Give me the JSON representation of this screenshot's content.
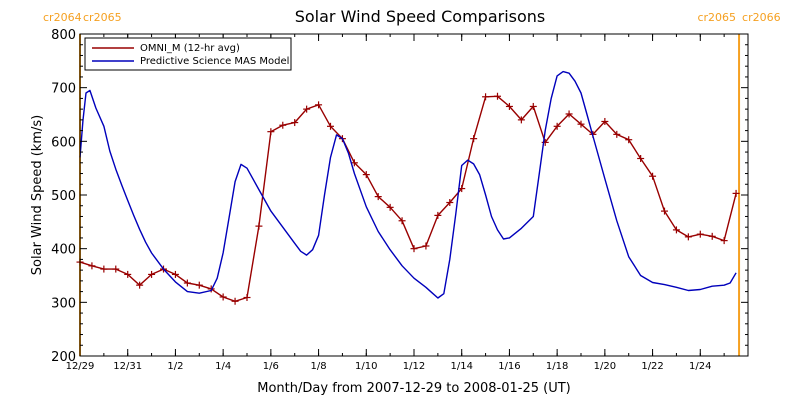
{
  "chart_data": {
    "type": "line",
    "title": "Solar Wind Speed Comparisons",
    "xlabel": "Month/Day from 2007-12-29 to 2008-01-25 (UT)",
    "ylabel": "Solar Wind Speed (km/s)",
    "ylim": [
      200,
      800
    ],
    "xlim": [
      "2007-12-29",
      "2008-01-26"
    ],
    "grid": false,
    "legend_position": "top-left",
    "y_ticks": [
      "200",
      "300",
      "400",
      "500",
      "600",
      "700",
      "800"
    ],
    "x_ticks": [
      {
        "date": "2007-12-29",
        "label": "12/29"
      },
      {
        "date": "2007-12-31",
        "label": "12/31"
      },
      {
        "date": "2008-01-02",
        "label": "1/2"
      },
      {
        "date": "2008-01-04",
        "label": "1/4"
      },
      {
        "date": "2008-01-06",
        "label": "1/6"
      },
      {
        "date": "2008-01-08",
        "label": "1/8"
      },
      {
        "date": "2008-01-10",
        "label": "1/10"
      },
      {
        "date": "2008-01-12",
        "label": "1/12"
      },
      {
        "date": "2008-01-14",
        "label": "1/14"
      },
      {
        "date": "2008-01-16",
        "label": "1/16"
      },
      {
        "date": "2008-01-18",
        "label": "1/18"
      },
      {
        "date": "2008-01-20",
        "label": "1/20"
      },
      {
        "date": "2008-01-22",
        "label": "1/22"
      },
      {
        "date": "2008-01-24",
        "label": "1/24"
      }
    ],
    "carrington_markers": [
      {
        "date": "2007-12-29",
        "left_label": "cr2064",
        "right_label": "cr2065",
        "side": "left"
      },
      {
        "date": "2008-01-25 15:00",
        "left_label": "cr2065",
        "right_label": "cr2066",
        "side": "right"
      }
    ],
    "series": [
      {
        "name": "OMNI_M (12-hr avg)",
        "color": "#990000",
        "marker": "plus",
        "points": [
          [
            "2007-12-29 00:00",
            375
          ],
          [
            "2007-12-29 12:00",
            368
          ],
          [
            "2007-12-30 00:00",
            362
          ],
          [
            "2007-12-30 12:00",
            362
          ],
          [
            "2007-12-31 00:00",
            352
          ],
          [
            "2007-12-31 12:00",
            332
          ],
          [
            "2008-01-01 00:00",
            352
          ],
          [
            "2008-01-01 12:00",
            362
          ],
          [
            "2008-01-02 00:00",
            352
          ],
          [
            "2008-01-02 12:00",
            336
          ],
          [
            "2008-01-03 00:00",
            332
          ],
          [
            "2008-01-03 12:00",
            325
          ],
          [
            "2008-01-04 00:00",
            310
          ],
          [
            "2008-01-04 12:00",
            302
          ],
          [
            "2008-01-05 00:00",
            309
          ],
          [
            "2008-01-05 12:00",
            442
          ],
          [
            "2008-01-06 00:00",
            618
          ],
          [
            "2008-01-06 12:00",
            630
          ],
          [
            "2008-01-07 00:00",
            635
          ],
          [
            "2008-01-07 12:00",
            660
          ],
          [
            "2008-01-08 00:00",
            668
          ],
          [
            "2008-01-08 12:00",
            628
          ],
          [
            "2008-01-09 00:00",
            605
          ],
          [
            "2008-01-09 12:00",
            560
          ],
          [
            "2008-01-10 00:00",
            538
          ],
          [
            "2008-01-10 12:00",
            497
          ],
          [
            "2008-01-11 00:00",
            477
          ],
          [
            "2008-01-11 12:00",
            452
          ],
          [
            "2008-01-12 00:00",
            400
          ],
          [
            "2008-01-12 12:00",
            405
          ],
          [
            "2008-01-13 00:00",
            462
          ],
          [
            "2008-01-13 12:00",
            486
          ],
          [
            "2008-01-14 00:00",
            512
          ],
          [
            "2008-01-14 12:00",
            605
          ],
          [
            "2008-01-15 00:00",
            683
          ],
          [
            "2008-01-15 12:00",
            684
          ],
          [
            "2008-01-16 00:00",
            665
          ],
          [
            "2008-01-16 12:00",
            640
          ],
          [
            "2008-01-17 00:00",
            665
          ],
          [
            "2008-01-17 12:00",
            598
          ],
          [
            "2008-01-18 00:00",
            628
          ],
          [
            "2008-01-18 12:00",
            651
          ],
          [
            "2008-01-19 00:00",
            632
          ],
          [
            "2008-01-19 12:00",
            613
          ],
          [
            "2008-01-20 00:00",
            637
          ],
          [
            "2008-01-20 12:00",
            613
          ],
          [
            "2008-01-21 00:00",
            603
          ],
          [
            "2008-01-21 12:00",
            568
          ],
          [
            "2008-01-22 00:00",
            535
          ],
          [
            "2008-01-22 12:00",
            470
          ],
          [
            "2008-01-23 00:00",
            435
          ],
          [
            "2008-01-23 12:00",
            422
          ],
          [
            "2008-01-24 00:00",
            427
          ],
          [
            "2008-01-24 12:00",
            423
          ],
          [
            "2008-01-25 00:00",
            415
          ],
          [
            "2008-01-25 12:00",
            503
          ]
        ]
      },
      {
        "name": "Predictive Science MAS Model",
        "color": "#0000bb",
        "marker": "none",
        "points": [
          [
            "2007-12-29 00:00",
            570
          ],
          [
            "2007-12-29 03:00",
            640
          ],
          [
            "2007-12-29 06:00",
            690
          ],
          [
            "2007-12-29 10:00",
            695
          ],
          [
            "2007-12-29 16:00",
            662
          ],
          [
            "2007-12-30 00:00",
            628
          ],
          [
            "2007-12-30 06:00",
            582
          ],
          [
            "2007-12-30 12:00",
            548
          ],
          [
            "2007-12-30 18:00",
            518
          ],
          [
            "2007-12-31 00:00",
            490
          ],
          [
            "2007-12-31 06:00",
            462
          ],
          [
            "2007-12-31 12:00",
            436
          ],
          [
            "2007-12-31 18:00",
            412
          ],
          [
            "2008-01-01 00:00",
            392
          ],
          [
            "2008-01-01 12:00",
            362
          ],
          [
            "2008-01-02 00:00",
            338
          ],
          [
            "2008-01-02 12:00",
            320
          ],
          [
            "2008-01-03 00:00",
            317
          ],
          [
            "2008-01-03 12:00",
            322
          ],
          [
            "2008-01-03 18:00",
            345
          ],
          [
            "2008-01-04 00:00",
            392
          ],
          [
            "2008-01-04 06:00",
            458
          ],
          [
            "2008-01-04 12:00",
            525
          ],
          [
            "2008-01-04 18:00",
            557
          ],
          [
            "2008-01-05 00:00",
            550
          ],
          [
            "2008-01-05 12:00",
            510
          ],
          [
            "2008-01-06 00:00",
            470
          ],
          [
            "2008-01-06 12:00",
            440
          ],
          [
            "2008-01-07 00:00",
            410
          ],
          [
            "2008-01-07 06:00",
            395
          ],
          [
            "2008-01-07 12:00",
            388
          ],
          [
            "2008-01-07 18:00",
            398
          ],
          [
            "2008-01-08 00:00",
            425
          ],
          [
            "2008-01-08 06:00",
            500
          ],
          [
            "2008-01-08 12:00",
            570
          ],
          [
            "2008-01-08 18:00",
            612
          ],
          [
            "2008-01-09 00:00",
            605
          ],
          [
            "2008-01-09 06:00",
            578
          ],
          [
            "2008-01-09 12:00",
            540
          ],
          [
            "2008-01-10 00:00",
            478
          ],
          [
            "2008-01-10 12:00",
            432
          ],
          [
            "2008-01-11 00:00",
            398
          ],
          [
            "2008-01-11 12:00",
            368
          ],
          [
            "2008-01-12 00:00",
            345
          ],
          [
            "2008-01-12 12:00",
            328
          ],
          [
            "2008-01-12 18:00",
            318
          ],
          [
            "2008-01-13 00:00",
            308
          ],
          [
            "2008-01-13 06:00",
            316
          ],
          [
            "2008-01-13 12:00",
            380
          ],
          [
            "2008-01-13 18:00",
            465
          ],
          [
            "2008-01-14 00:00",
            555
          ],
          [
            "2008-01-14 06:00",
            565
          ],
          [
            "2008-01-14 12:00",
            558
          ],
          [
            "2008-01-14 18:00",
            538
          ],
          [
            "2008-01-15 00:00",
            500
          ],
          [
            "2008-01-15 06:00",
            460
          ],
          [
            "2008-01-15 12:00",
            435
          ],
          [
            "2008-01-15 18:00",
            418
          ],
          [
            "2008-01-16 00:00",
            420
          ],
          [
            "2008-01-16 12:00",
            438
          ],
          [
            "2008-01-17 00:00",
            460
          ],
          [
            "2008-01-17 06:00",
            540
          ],
          [
            "2008-01-17 12:00",
            620
          ],
          [
            "2008-01-17 18:00",
            680
          ],
          [
            "2008-01-18 00:00",
            722
          ],
          [
            "2008-01-18 06:00",
            730
          ],
          [
            "2008-01-18 12:00",
            727
          ],
          [
            "2008-01-18 18:00",
            712
          ],
          [
            "2008-01-19 00:00",
            690
          ],
          [
            "2008-01-19 06:00",
            650
          ],
          [
            "2008-01-19 12:00",
            610
          ],
          [
            "2008-01-20 00:00",
            530
          ],
          [
            "2008-01-20 12:00",
            452
          ],
          [
            "2008-01-21 00:00",
            385
          ],
          [
            "2008-01-21 12:00",
            350
          ],
          [
            "2008-01-22 00:00",
            337
          ],
          [
            "2008-01-22 12:00",
            333
          ],
          [
            "2008-01-23 00:00",
            328
          ],
          [
            "2008-01-23 12:00",
            322
          ],
          [
            "2008-01-24 00:00",
            324
          ],
          [
            "2008-01-24 12:00",
            330
          ],
          [
            "2008-01-25 00:00",
            332
          ],
          [
            "2008-01-25 06:00",
            336
          ],
          [
            "2008-01-25 12:00",
            355
          ]
        ]
      }
    ]
  }
}
